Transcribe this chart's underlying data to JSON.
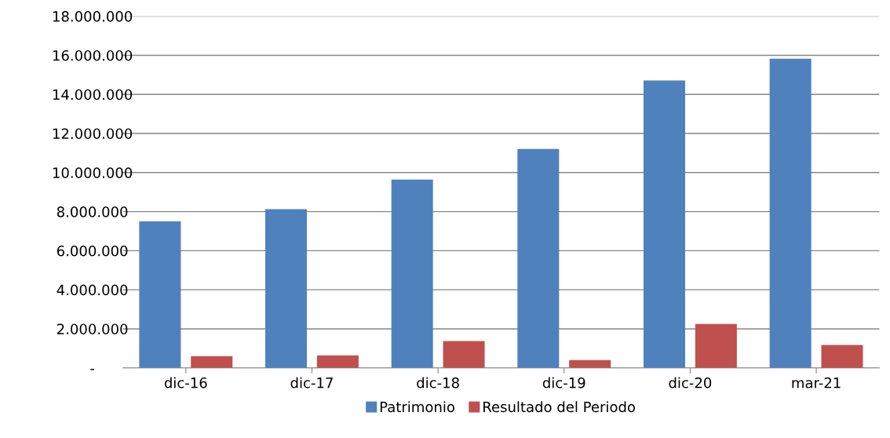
{
  "chart_data": {
    "type": "bar",
    "categories": [
      "dic-16",
      "dic-17",
      "dic-18",
      "dic-19",
      "dic-20",
      "mar-21"
    ],
    "series": [
      {
        "name": "Patrimonio",
        "color": "#4f81bd",
        "values": [
          7500000,
          8120000,
          9640000,
          11210000,
          14710000,
          15830000
        ]
      },
      {
        "name": "Resultado del Periodo",
        "color": "#c0504d",
        "values": [
          600000,
          640000,
          1370000,
          400000,
          2250000,
          1170000
        ]
      }
    ],
    "ylim": [
      0,
      18000000
    ],
    "yticks": [
      {
        "value": 0,
        "label": "-"
      },
      {
        "value": 2000000,
        "label": "2.000.000"
      },
      {
        "value": 4000000,
        "label": "4.000.000"
      },
      {
        "value": 6000000,
        "label": "6.000.000"
      },
      {
        "value": 8000000,
        "label": "8.000.000"
      },
      {
        "value": 10000000,
        "label": "10.000.000"
      },
      {
        "value": 12000000,
        "label": "12.000.000"
      },
      {
        "value": 14000000,
        "label": "14.000.000"
      },
      {
        "value": 16000000,
        "label": "16.000.000"
      },
      {
        "value": 18000000,
        "label": "18.000.000"
      }
    ],
    "grid": "y",
    "legend": "bottom"
  }
}
